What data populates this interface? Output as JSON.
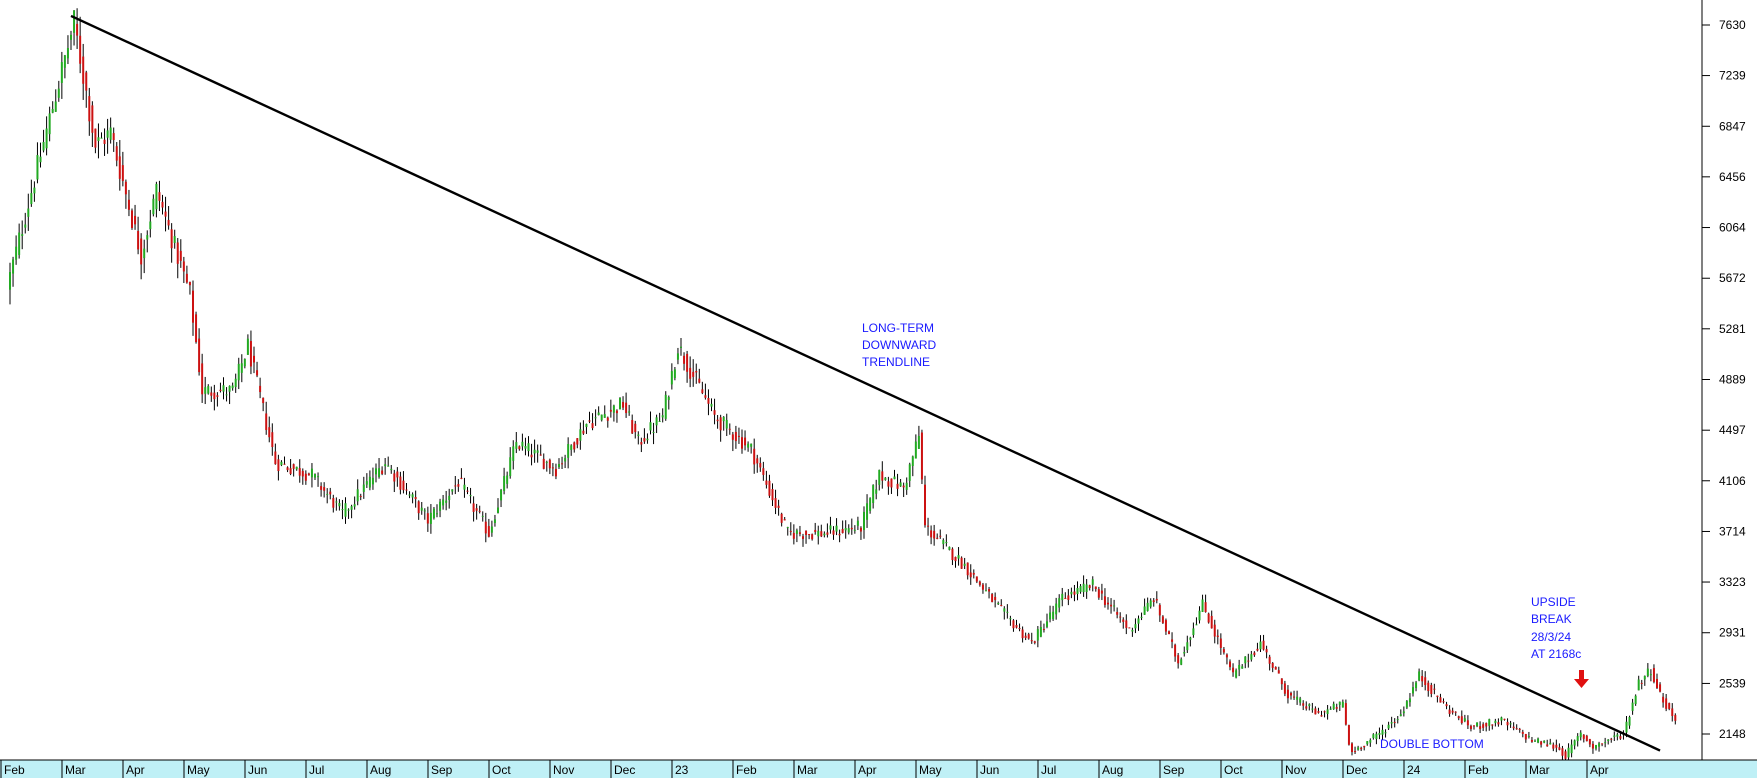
{
  "chart_data": {
    "type": "candlestick",
    "title": "",
    "xlabel": "",
    "ylabel": "",
    "ylim": [
      1900,
      7800
    ],
    "y_ticks": [
      7630,
      7239,
      6847,
      6456,
      6064,
      5672,
      5281,
      4889,
      4497,
      4106,
      3714,
      3323,
      2931,
      2539,
      2148
    ],
    "x_tick_labels": [
      "Feb",
      "Mar",
      "Apr",
      "May",
      "Jun",
      "Jul",
      "Aug",
      "Sep",
      "Oct",
      "Nov",
      "Dec",
      "23",
      "Feb",
      "Mar",
      "Apr",
      "May",
      "Jun",
      "Jul",
      "Aug",
      "Sep",
      "Oct",
      "Nov",
      "Dec",
      "24",
      "Feb",
      "Mar",
      "Apr"
    ],
    "grid": false,
    "up_color": "#22aa22",
    "down_color": "#cc1111",
    "price_path": [
      {
        "t": 0.0,
        "v": 5600
      },
      {
        "t": 1.1,
        "v": 7650
      },
      {
        "t": 1.45,
        "v": 6700
      },
      {
        "t": 1.7,
        "v": 6800
      },
      {
        "t": 2.2,
        "v": 5850
      },
      {
        "t": 2.45,
        "v": 6350
      },
      {
        "t": 3.0,
        "v": 5550
      },
      {
        "t": 3.2,
        "v": 4800
      },
      {
        "t": 3.7,
        "v": 4800
      },
      {
        "t": 3.95,
        "v": 5150
      },
      {
        "t": 4.4,
        "v": 4250
      },
      {
        "t": 5.0,
        "v": 4150
      },
      {
        "t": 5.5,
        "v": 3850
      },
      {
        "t": 6.2,
        "v": 4250
      },
      {
        "t": 6.9,
        "v": 3800
      },
      {
        "t": 7.4,
        "v": 4100
      },
      {
        "t": 7.9,
        "v": 3700
      },
      {
        "t": 8.35,
        "v": 4400
      },
      {
        "t": 9.0,
        "v": 4200
      },
      {
        "t": 9.5,
        "v": 4550
      },
      {
        "t": 10.1,
        "v": 4700
      },
      {
        "t": 10.35,
        "v": 4400
      },
      {
        "t": 10.75,
        "v": 4600
      },
      {
        "t": 11.0,
        "v": 5150
      },
      {
        "t": 11.6,
        "v": 4600
      },
      {
        "t": 12.2,
        "v": 4350
      },
      {
        "t": 12.8,
        "v": 3700
      },
      {
        "t": 13.4,
        "v": 3700
      },
      {
        "t": 14.0,
        "v": 3750
      },
      {
        "t": 14.3,
        "v": 4150
      },
      {
        "t": 14.7,
        "v": 4050
      },
      {
        "t": 14.95,
        "v": 4450
      },
      {
        "t": 15.05,
        "v": 3750
      },
      {
        "t": 15.7,
        "v": 3450
      },
      {
        "t": 16.3,
        "v": 3100
      },
      {
        "t": 16.8,
        "v": 2850
      },
      {
        "t": 17.3,
        "v": 3200
      },
      {
        "t": 17.8,
        "v": 3300
      },
      {
        "t": 18.4,
        "v": 2950
      },
      {
        "t": 18.8,
        "v": 3200
      },
      {
        "t": 19.2,
        "v": 2700
      },
      {
        "t": 19.6,
        "v": 3150
      },
      {
        "t": 20.1,
        "v": 2600
      },
      {
        "t": 20.55,
        "v": 2850
      },
      {
        "t": 21.0,
        "v": 2450
      },
      {
        "t": 21.5,
        "v": 2300
      },
      {
        "t": 21.9,
        "v": 2380
      },
      {
        "t": 22.02,
        "v": 2000
      },
      {
        "t": 22.5,
        "v": 2150
      },
      {
        "t": 22.85,
        "v": 2300
      },
      {
        "t": 23.15,
        "v": 2600
      },
      {
        "t": 23.6,
        "v": 2350
      },
      {
        "t": 24.0,
        "v": 2200
      },
      {
        "t": 24.5,
        "v": 2250
      },
      {
        "t": 25.0,
        "v": 2100
      },
      {
        "t": 25.4,
        "v": 2050
      },
      {
        "t": 25.55,
        "v": 1980
      },
      {
        "t": 25.8,
        "v": 2150
      },
      {
        "t": 26.0,
        "v": 2050
      },
      {
        "t": 26.5,
        "v": 2150
      },
      {
        "t": 26.75,
        "v": 2550
      },
      {
        "t": 26.95,
        "v": 2650
      },
      {
        "t": 27.1,
        "v": 2450
      },
      {
        "t": 27.35,
        "v": 2250
      }
    ],
    "trendline": {
      "t1": 1.0,
      "v1": 7700,
      "t2": 27.05,
      "v2": 2020
    },
    "annotations": {
      "trendline_label": [
        "LONG-TERM",
        "DOWNWARD",
        "TRENDLINE"
      ],
      "breakout_label": [
        "UPSIDE",
        "BREAK",
        "28/3/24",
        "AT 2168c"
      ],
      "double_bottom_label": "DOUBLE BOTTOM"
    },
    "annotation_color": "#1a1aff",
    "arrow_color": "#e01010"
  }
}
